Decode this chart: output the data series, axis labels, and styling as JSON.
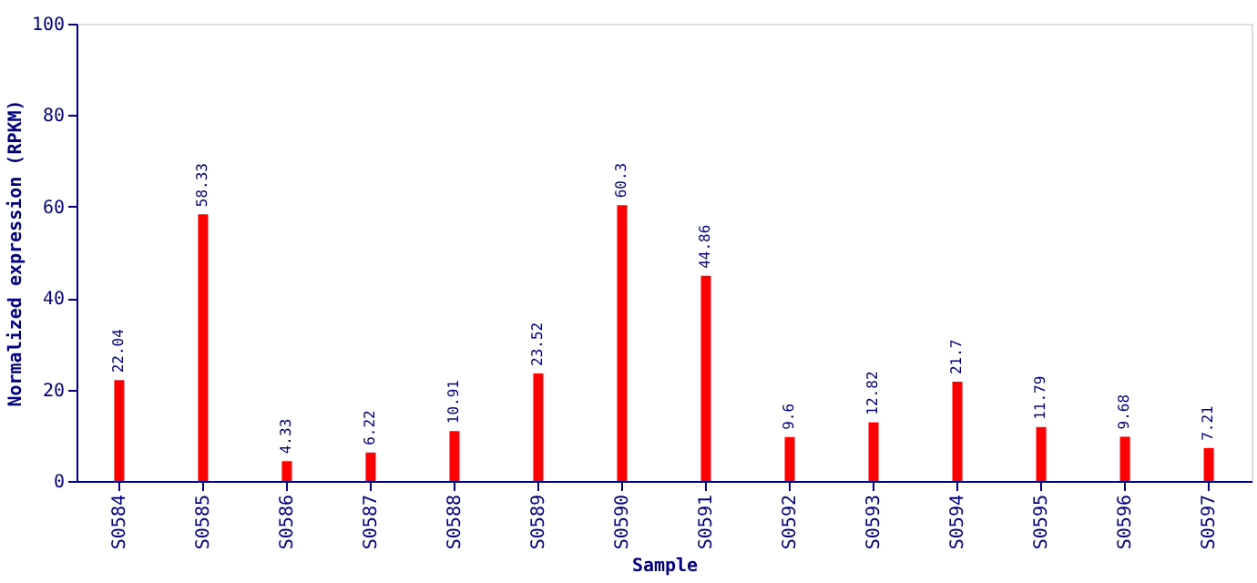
{
  "chart_data": {
    "type": "bar",
    "xlabel": "Sample",
    "ylabel": "Normalized expression (RPKM)",
    "categories": [
      "S0584",
      "S0585",
      "S0586",
      "S0587",
      "S0588",
      "S0589",
      "S0590",
      "S0591",
      "S0592",
      "S0593",
      "S0594",
      "S0595",
      "S0596",
      "S0597"
    ],
    "values": [
      22.04,
      58.33,
      4.33,
      6.22,
      10.91,
      23.52,
      60.3,
      44.86,
      9.6,
      12.82,
      21.7,
      11.79,
      9.68,
      7.21
    ],
    "color": "#ff0000",
    "ylim": [
      0,
      100
    ],
    "yticks": [
      0,
      20,
      40,
      60,
      80,
      100
    ],
    "grid": false,
    "data_labels": true
  }
}
